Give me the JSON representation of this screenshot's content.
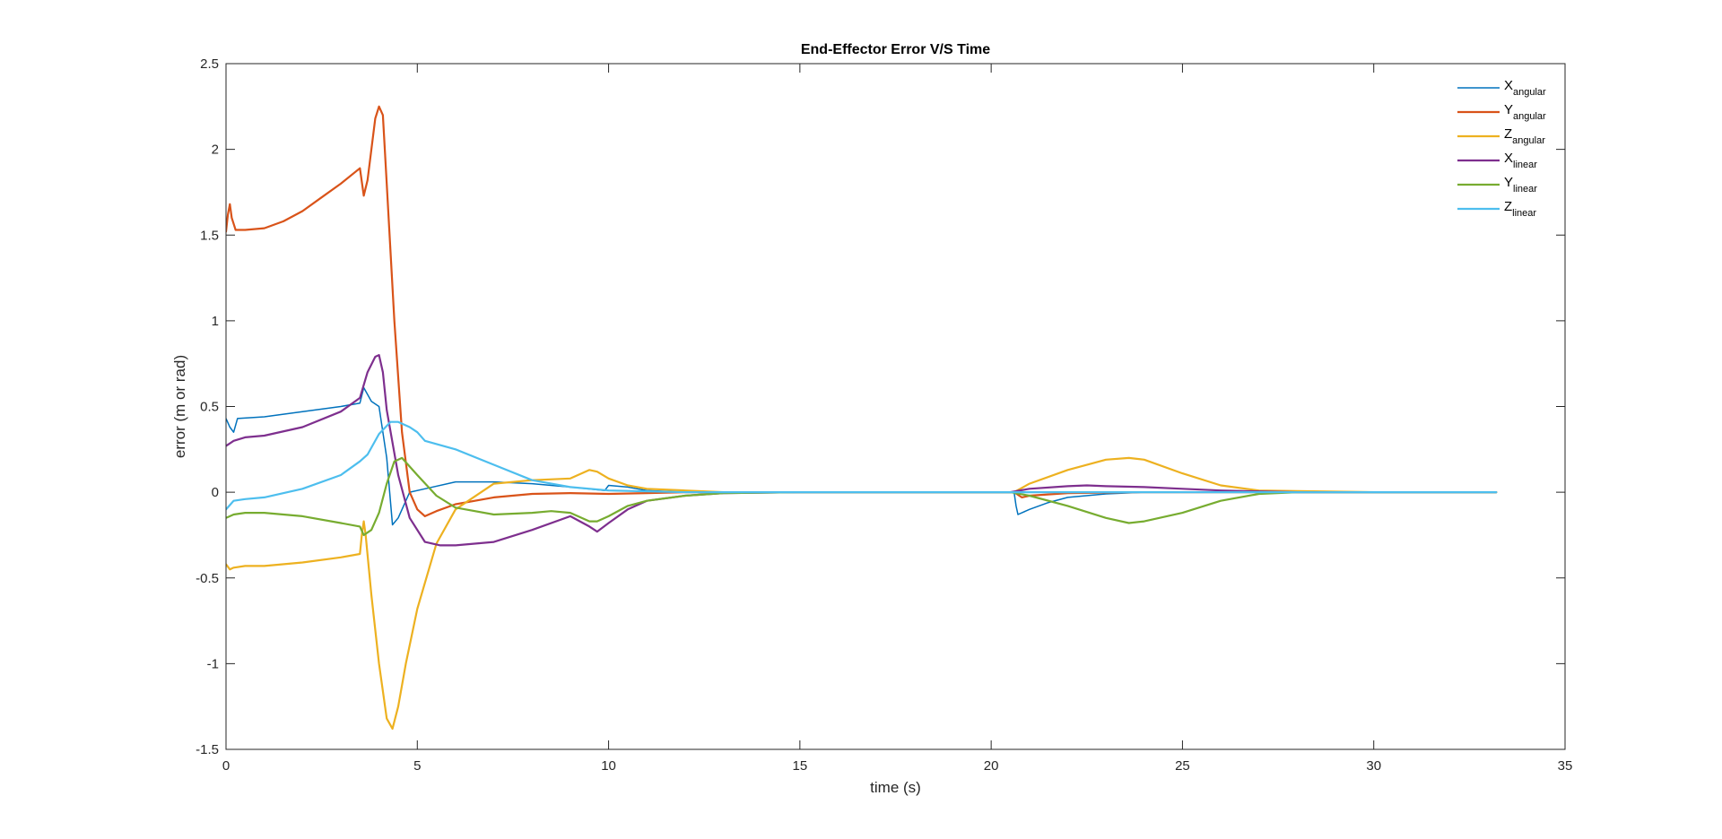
{
  "chart_data": {
    "type": "line",
    "title": "End-Effector Error V/S Time",
    "xlabel": "time (s)",
    "ylabel": "error (m or rad)",
    "xlim": [
      0,
      35
    ],
    "ylim": [
      -1.5,
      2.5
    ],
    "xticks": [
      0,
      5,
      10,
      15,
      20,
      25,
      30,
      35
    ],
    "yticks": [
      -1.5,
      -1,
      -0.5,
      0,
      0.5,
      1,
      1.5,
      2,
      2.5
    ],
    "xtick_labels": [
      "0",
      "5",
      "10",
      "15",
      "20",
      "25",
      "30",
      "35"
    ],
    "ytick_labels": [
      "-1.5",
      "-1",
      "-0.5",
      "0",
      "0.5",
      "1",
      "1.5",
      "2",
      "2.5"
    ],
    "grid": false,
    "legend_position": "top-right",
    "series": [
      {
        "name": "X",
        "subscript": "angular",
        "color": "#0072BD",
        "x": [
          0,
          0.1,
          0.2,
          0.3,
          1,
          2,
          3,
          3.5,
          3.6,
          3.8,
          4.0,
          4.2,
          4.35,
          4.5,
          4.8,
          5.2,
          6,
          7,
          8,
          9,
          9.9,
          10.0,
          10.5,
          11,
          12,
          13,
          15,
          20,
          20.6,
          20.65,
          20.7,
          21,
          21.5,
          22,
          23,
          24,
          25,
          27,
          30,
          33.2
        ],
        "y": [
          0.43,
          0.38,
          0.35,
          0.43,
          0.44,
          0.47,
          0.5,
          0.52,
          0.61,
          0.53,
          0.5,
          0.2,
          -0.19,
          -0.15,
          0.0,
          0.02,
          0.06,
          0.06,
          0.05,
          0.03,
          0.01,
          0.04,
          0.03,
          0.01,
          0.0,
          0.0,
          0.0,
          0.0,
          0.0,
          -0.08,
          -0.13,
          -0.1,
          -0.06,
          -0.03,
          -0.01,
          0.0,
          0.0,
          0.0,
          0.0,
          0.0
        ]
      },
      {
        "name": "Y",
        "subscript": "angular",
        "color": "#D95319",
        "x": [
          0,
          0.05,
          0.1,
          0.15,
          0.25,
          0.5,
          1,
          1.5,
          2,
          2.5,
          3,
          3.5,
          3.6,
          3.7,
          3.8,
          3.9,
          4.0,
          4.1,
          4.2,
          4.4,
          4.6,
          4.8,
          5.0,
          5.2,
          5.5,
          6,
          7,
          8,
          9,
          10,
          11,
          12,
          15,
          20,
          20.6,
          20.8,
          21,
          22,
          24,
          26,
          30,
          33.2
        ],
        "y": [
          1.52,
          1.62,
          1.68,
          1.6,
          1.53,
          1.53,
          1.54,
          1.58,
          1.64,
          1.72,
          1.8,
          1.89,
          1.73,
          1.82,
          2.0,
          2.18,
          2.25,
          2.2,
          1.8,
          1.0,
          0.35,
          0.0,
          -0.1,
          -0.14,
          -0.11,
          -0.07,
          -0.03,
          -0.01,
          -0.005,
          -0.01,
          -0.005,
          0.0,
          0.0,
          0.0,
          0.0,
          -0.03,
          -0.02,
          -0.005,
          0.0,
          0.0,
          0.0,
          0.0
        ]
      },
      {
        "name": "Z",
        "subscript": "angular",
        "color": "#EDB120",
        "x": [
          0,
          0.1,
          0.2,
          0.5,
          1,
          2,
          3,
          3.5,
          3.55,
          3.6,
          3.65,
          3.8,
          4.0,
          4.2,
          4.35,
          4.5,
          4.7,
          5.0,
          5.5,
          6,
          7,
          8,
          9,
          9.5,
          9.7,
          10,
          10.5,
          11,
          12,
          13,
          15,
          20,
          20.6,
          21,
          22,
          23,
          23.6,
          24,
          25,
          26,
          27,
          30,
          33.2
        ],
        "y": [
          -0.42,
          -0.45,
          -0.44,
          -0.43,
          -0.43,
          -0.41,
          -0.38,
          -0.36,
          -0.25,
          -0.17,
          -0.25,
          -0.6,
          -1.0,
          -1.32,
          -1.38,
          -1.25,
          -1.0,
          -0.68,
          -0.3,
          -0.1,
          0.05,
          0.07,
          0.08,
          0.13,
          0.12,
          0.08,
          0.04,
          0.02,
          0.01,
          0.0,
          0.0,
          0.0,
          0.0,
          0.05,
          0.13,
          0.19,
          0.2,
          0.19,
          0.11,
          0.04,
          0.01,
          0.0,
          0.0
        ]
      },
      {
        "name": "X",
        "subscript": "linear",
        "color": "#7E2F8E",
        "x": [
          0,
          0.2,
          0.5,
          1,
          2,
          3,
          3.5,
          3.7,
          3.9,
          4.0,
          4.1,
          4.2,
          4.5,
          4.8,
          5.2,
          5.6,
          6,
          7,
          8,
          9,
          9.5,
          9.7,
          10,
          10.5,
          11,
          12,
          13,
          15,
          20,
          20.5,
          21,
          22,
          22.5,
          23,
          24,
          25,
          26,
          27,
          28,
          30,
          33.2
        ],
        "y": [
          0.27,
          0.3,
          0.32,
          0.33,
          0.38,
          0.47,
          0.55,
          0.7,
          0.79,
          0.8,
          0.7,
          0.48,
          0.1,
          -0.15,
          -0.29,
          -0.31,
          -0.31,
          -0.29,
          -0.22,
          -0.14,
          -0.2,
          -0.23,
          -0.18,
          -0.1,
          -0.05,
          -0.02,
          -0.005,
          0.0,
          0.0,
          0.0,
          0.02,
          0.035,
          0.04,
          0.035,
          0.03,
          0.02,
          0.01,
          0.005,
          0.0,
          0.0,
          0.0
        ]
      },
      {
        "name": "Y",
        "subscript": "linear",
        "color": "#77AC30",
        "x": [
          0,
          0.2,
          0.5,
          1,
          2,
          3,
          3.5,
          3.6,
          3.8,
          4.0,
          4.2,
          4.4,
          4.6,
          5,
          5.5,
          6,
          7,
          8,
          8.5,
          9,
          9.5,
          9.7,
          10,
          10.5,
          11,
          12,
          13,
          15,
          20,
          20.5,
          21,
          22,
          23,
          23.6,
          24,
          25,
          26,
          27,
          28,
          30,
          33.2
        ],
        "y": [
          -0.15,
          -0.13,
          -0.12,
          -0.12,
          -0.14,
          -0.18,
          -0.2,
          -0.25,
          -0.22,
          -0.12,
          0.05,
          0.18,
          0.2,
          0.1,
          -0.02,
          -0.09,
          -0.13,
          -0.12,
          -0.11,
          -0.12,
          -0.17,
          -0.17,
          -0.14,
          -0.08,
          -0.05,
          -0.02,
          -0.005,
          0.0,
          0.0,
          0.0,
          -0.02,
          -0.08,
          -0.15,
          -0.18,
          -0.17,
          -0.12,
          -0.05,
          -0.01,
          0.0,
          0.0,
          0.0
        ]
      },
      {
        "name": "Z",
        "subscript": "linear",
        "color": "#4DBEEE",
        "x": [
          0,
          0.2,
          0.5,
          1,
          2,
          3,
          3.5,
          3.7,
          4.0,
          4.3,
          4.5,
          4.8,
          5.0,
          5.2,
          6,
          7,
          8,
          9,
          10,
          11,
          12,
          13,
          15,
          20,
          33.2
        ],
        "y": [
          -0.1,
          -0.05,
          -0.04,
          -0.03,
          0.02,
          0.1,
          0.18,
          0.22,
          0.34,
          0.41,
          0.41,
          0.38,
          0.35,
          0.3,
          0.25,
          0.16,
          0.07,
          0.03,
          0.01,
          0.005,
          0.0,
          0.0,
          0.0,
          0.0,
          0.0
        ]
      }
    ]
  }
}
